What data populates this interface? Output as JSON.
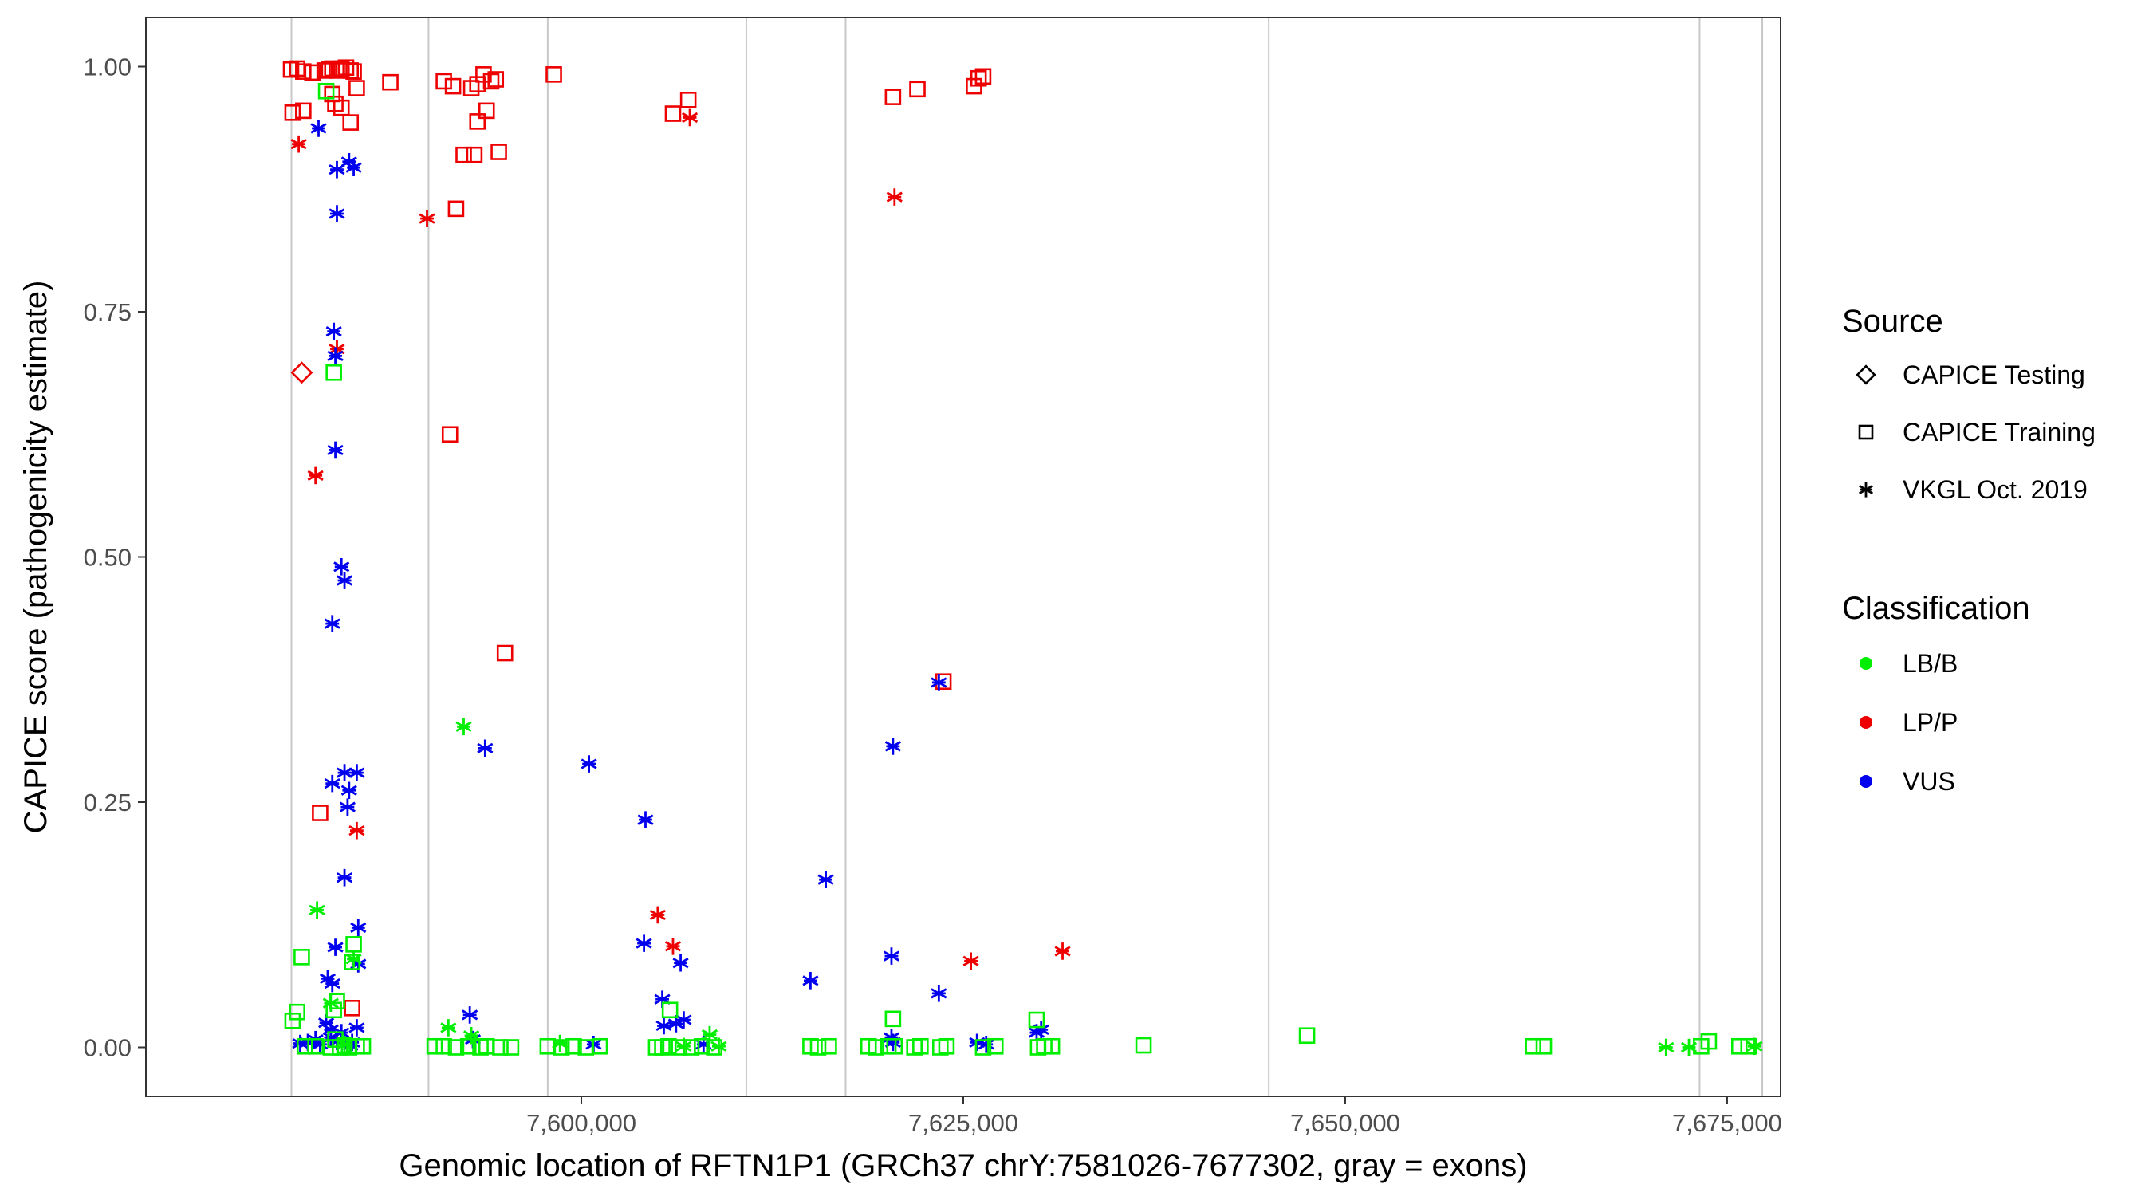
{
  "chart_data": {
    "type": "scatter",
    "title": "",
    "xlabel": "Genomic location of RFTN1P1 (GRCh37 chrY:7581026-7677302, gray = exons)",
    "ylabel": "CAPICE score (pathogenicity estimate)",
    "xlim": [
      7571500,
      7678500
    ],
    "ylim": [
      -0.05,
      1.05
    ],
    "x_ticks": [
      7600000,
      7625000,
      7650000,
      7675000
    ],
    "x_tick_labels": [
      "7,600,000",
      "7,625,000",
      "7,650,000",
      "7,675,000"
    ],
    "y_ticks": [
      0.0,
      0.25,
      0.5,
      0.75,
      1.0
    ],
    "y_tick_labels": [
      "0.00",
      "0.25",
      "0.50",
      "0.75",
      "1.00"
    ],
    "grid": false,
    "exon_lines": [
      7581026,
      7590000,
      7597800,
      7610800,
      7617300,
      7645000,
      7673200,
      7677302
    ],
    "exon_color": "#c8c8c8",
    "legend_position": "right",
    "legends": {
      "shape": {
        "title": "Source",
        "items": [
          {
            "label": "CAPICE Testing",
            "shape": "diamond"
          },
          {
            "label": "CAPICE Training",
            "shape": "square"
          },
          {
            "label": "VKGL Oct. 2019",
            "shape": "asterisk"
          }
        ]
      },
      "color": {
        "title": "Classification",
        "items": [
          {
            "label": "LB/B",
            "color": "#00ee00"
          },
          {
            "label": "LP/P",
            "color": "#ee0000"
          },
          {
            "label": "VUS",
            "color": "#0000ee"
          }
        ]
      }
    },
    "series": [
      {
        "shape": "diamond",
        "class": "LP/P",
        "x": [
          7581700
        ],
        "y": [
          0.688
        ]
      },
      {
        "shape": "square",
        "class": "LP/P",
        "x": [
          7581000,
          7581400,
          7581800,
          7582400,
          7583200,
          7583500,
          7583700,
          7584000,
          7584300,
          7584600,
          7584900,
          7585100,
          7581100,
          7581800,
          7583900,
          7584300,
          7584900,
          7583700,
          7585300,
          7587500,
          7591000,
          7591600,
          7592800,
          7593200,
          7593600,
          7594100,
          7593200,
          7593800,
          7594400,
          7592300,
          7594600,
          7593000,
          7591800,
          7591400,
          7595000,
          7598200,
          7606000,
          7607000,
          7620400,
          7622000,
          7625700,
          7626000,
          7626300,
          7623700,
          7582900,
          7585000
        ],
        "y": [
          0.997,
          0.998,
          0.995,
          0.994,
          0.996,
          0.997,
          0.998,
          0.996,
          0.998,
          0.999,
          0.996,
          0.995,
          0.953,
          0.955,
          0.962,
          0.958,
          0.943,
          0.972,
          0.978,
          0.984,
          0.985,
          0.98,
          0.978,
          0.982,
          0.992,
          0.985,
          0.944,
          0.955,
          0.987,
          0.91,
          0.913,
          0.91,
          0.855,
          0.625,
          0.402,
          0.992,
          0.952,
          0.966,
          0.969,
          0.977,
          0.98,
          0.988,
          0.99,
          0.373,
          0.239,
          0.04
        ]
      },
      {
        "shape": "asterisk",
        "class": "LP/P",
        "x": [
          7581500,
          7582600,
          7584000,
          7585300,
          7589900,
          7607100,
          7620500,
          7605000,
          7606000,
          7625500,
          7631500
        ],
        "y": [
          0.921,
          0.583,
          0.712,
          0.221,
          0.845,
          0.948,
          0.867,
          0.135,
          0.103,
          0.088,
          0.098
        ]
      },
      {
        "shape": "asterisk",
        "class": "VUS",
        "x": [
          7582800,
          7584800,
          7584000,
          7585100,
          7584000,
          7583800,
          7583900,
          7583900,
          7584300,
          7584500,
          7583700,
          7584500,
          7584800,
          7585300,
          7584700,
          7583700,
          7584500,
          7585400,
          7585400,
          7583900,
          7583400,
          7583700,
          7582100,
          7582600,
          7583300,
          7584300,
          7584900,
          7585000,
          7583600,
          7583600,
          7582900,
          7584000,
          7585300,
          7592700,
          7593700,
          7592900,
          7600500,
          7604200,
          7604100,
          7605300,
          7606200,
          7606500,
          7606700,
          7605400,
          7608000,
          7615000,
          7616000,
          7620400,
          7620300,
          7620400,
          7620300,
          7623400,
          7623400,
          7625900,
          7626500,
          7629800,
          7630100,
          7600800,
          7581600
        ],
        "y": [
          0.937,
          0.903,
          0.895,
          0.897,
          0.85,
          0.73,
          0.705,
          0.609,
          0.49,
          0.476,
          0.432,
          0.28,
          0.262,
          0.28,
          0.245,
          0.269,
          0.173,
          0.122,
          0.085,
          0.102,
          0.07,
          0.065,
          0.005,
          0.008,
          0.025,
          0.015,
          0.002,
          0.005,
          0.018,
          0.01,
          0.003,
          0.006,
          0.02,
          0.033,
          0.305,
          0.008,
          0.289,
          0.232,
          0.106,
          0.049,
          0.024,
          0.086,
          0.028,
          0.022,
          0.003,
          0.068,
          0.171,
          0.307,
          0.093,
          0.005,
          0.01,
          0.372,
          0.055,
          0.005,
          0.003,
          0.015,
          0.018,
          0.003,
          0.004
        ]
      },
      {
        "shape": "square",
        "class": "LB/B",
        "x": [
          7583300,
          7583800,
          7581100,
          7581700,
          7581400,
          7583800,
          7584000,
          7585100,
          7585000,
          7584500,
          7581900,
          7582600,
          7583600,
          7584200,
          7584800,
          7585300,
          7585700,
          7590400,
          7591000,
          7591800,
          7592600,
          7593400,
          7593800,
          7594700,
          7595400,
          7597800,
          7598700,
          7599500,
          7600300,
          7601200,
          7604900,
          7605300,
          7605700,
          7606400,
          7607200,
          7607900,
          7608700,
          7615000,
          7615500,
          7616200,
          7618800,
          7619300,
          7620100,
          7620500,
          7621800,
          7622200,
          7623500,
          7623900,
          7626300,
          7627100,
          7629900,
          7630300,
          7630800,
          7636800,
          7647500,
          7662300,
          7663000,
          7673300,
          7673800,
          7675800,
          7676400,
          7605800,
          7620400,
          7629800,
          7583900
        ],
        "y": [
          0.975,
          0.688,
          0.027,
          0.092,
          0.036,
          0.038,
          0.047,
          0.105,
          0.087,
          0.002,
          0.001,
          0.001,
          0.0,
          0.0,
          0.0,
          0.001,
          0.001,
          0.001,
          0.001,
          0.0,
          0.001,
          0.0,
          0.001,
          0.0,
          0.0,
          0.001,
          0.0,
          0.001,
          0.0,
          0.001,
          0.0,
          0.0,
          0.001,
          0.0,
          0.0,
          0.001,
          0.0,
          0.001,
          0.0,
          0.001,
          0.001,
          0.0,
          0.001,
          0.001,
          0.0,
          0.001,
          0.0,
          0.001,
          0.0,
          0.001,
          0.0,
          0.001,
          0.001,
          0.002,
          0.012,
          0.001,
          0.001,
          0.001,
          0.006,
          0.001,
          0.001,
          0.038,
          0.029,
          0.028,
          0.008
        ]
      },
      {
        "shape": "asterisk",
        "class": "LB/B",
        "x": [
          7582700,
          7583600,
          7585100,
          7591300,
          7592300,
          7592800,
          7598600,
          7606700,
          7608400,
          7609000,
          7671000,
          7672500,
          7676800,
          7584500
        ],
        "y": [
          0.14,
          0.045,
          0.09,
          0.02,
          0.327,
          0.012,
          0.004,
          0.001,
          0.013,
          0.001,
          0.0,
          0.0,
          0.001,
          0.003
        ]
      }
    ]
  }
}
